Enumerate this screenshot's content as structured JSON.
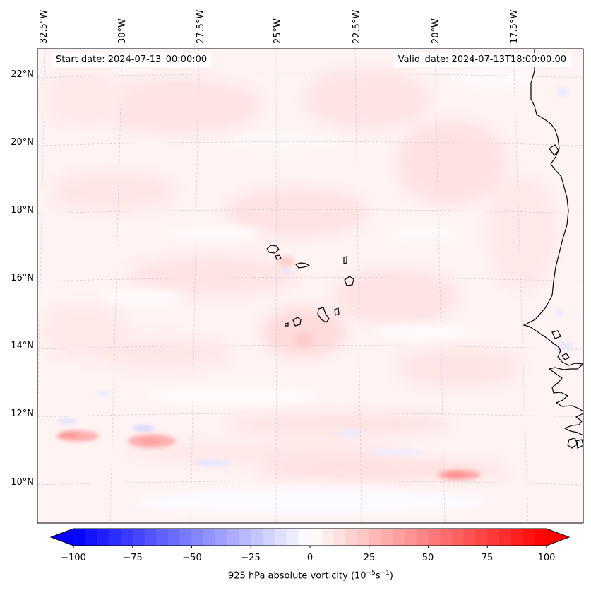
{
  "header": {
    "start_date": "Start date: 2024-07-13_00:00:00",
    "valid_date": "Valid_date: 2024-07-13T18:00:00.00"
  },
  "map": {
    "region": "Eastern tropical Atlantic / Cape Verde",
    "longitude_labels": [
      "32.5°W",
      "30°W",
      "27.5°W",
      "25°W",
      "22.5°W",
      "20°W",
      "17.5°W"
    ],
    "latitude_labels": [
      "22°N",
      "20°N",
      "18°N",
      "16°N",
      "14°N",
      "12°N",
      "10°N"
    ]
  },
  "colorbar": {
    "ticks": [
      "−100",
      "−75",
      "−50",
      "−25",
      "0",
      "25",
      "50",
      "75",
      "100"
    ],
    "vmin": -100,
    "vmax": 100,
    "label_main": "925 hPa absolute vorticity (10",
    "label_exp1": "−5",
    "label_mid": "s",
    "label_exp2": "−1",
    "label_close": ")",
    "colormap": "bwr",
    "low_color": "#0000ff",
    "mid_color": "#ffffff",
    "high_color": "#ff0000"
  }
}
